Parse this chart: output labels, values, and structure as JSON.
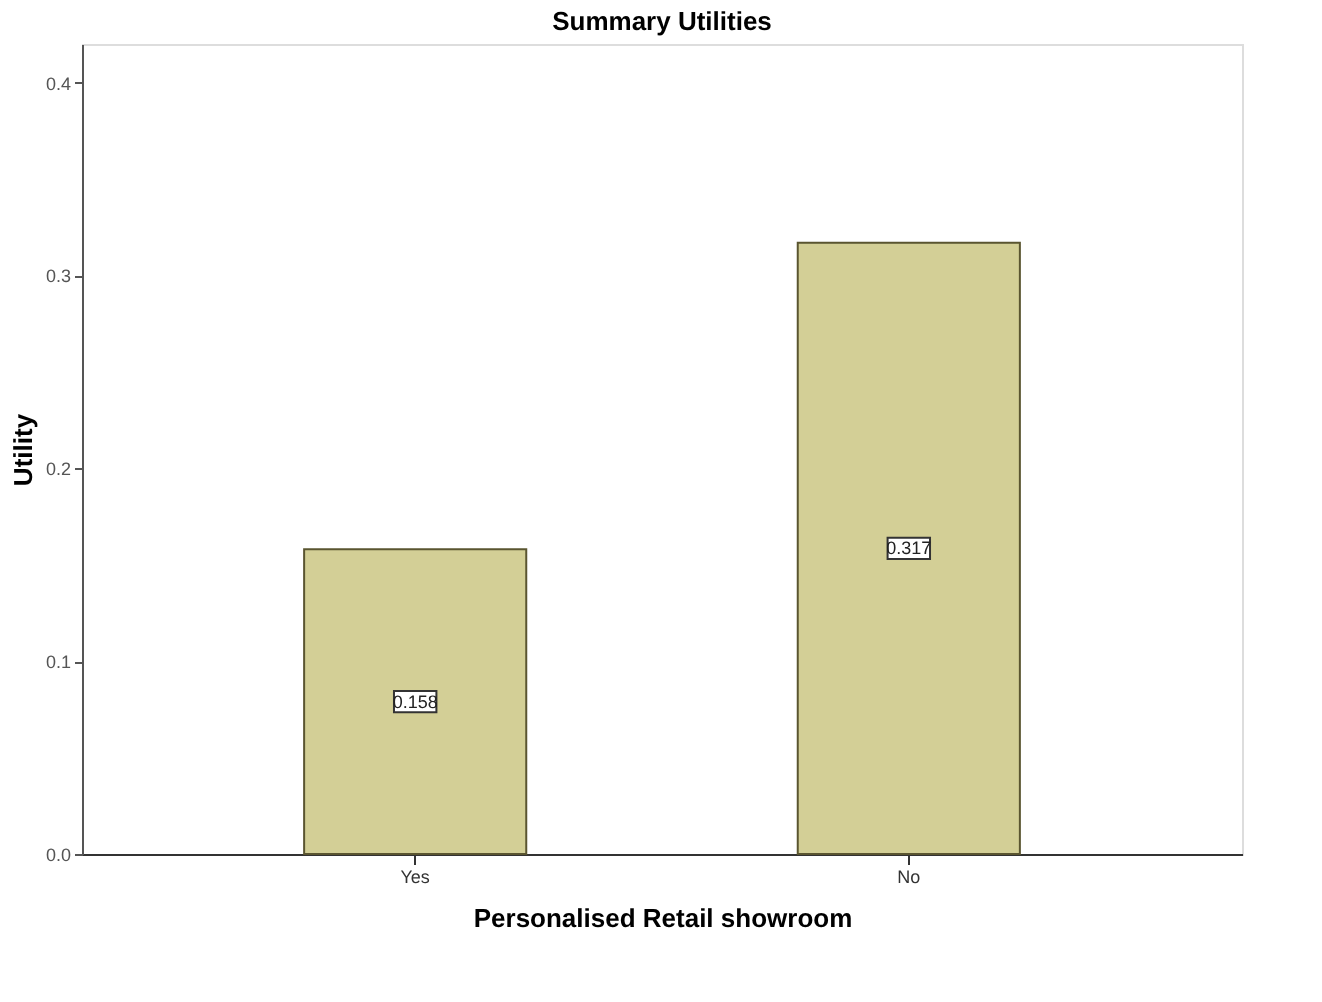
{
  "chart_data": {
    "type": "bar",
    "title": "Summary Utilities",
    "xlabel": "Personalised Retail showroom",
    "ylabel": "Utility",
    "categories": [
      "Yes",
      "No"
    ],
    "values": [
      0.158,
      0.317
    ],
    "color": "#d3cf96",
    "ylim": [
      0,
      0.42
    ],
    "yticks": [
      {
        "value": 0,
        "label": "0.0"
      },
      0.1,
      0.2,
      0.3,
      0.4
    ],
    "grid": false,
    "data_labels": true
  }
}
